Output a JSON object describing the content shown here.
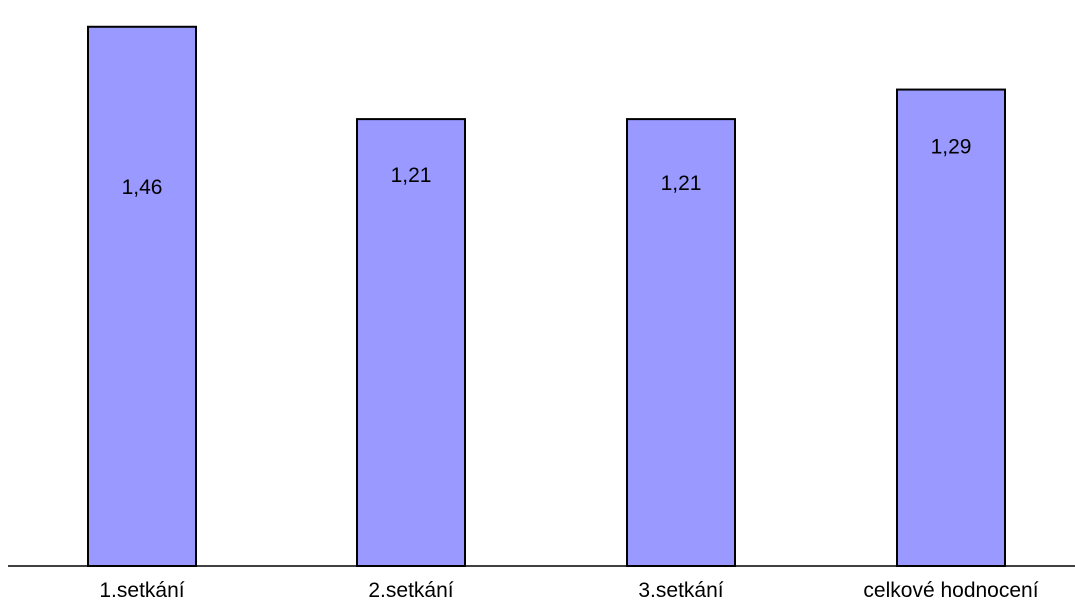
{
  "chart_data": {
    "type": "bar",
    "categories": [
      "1.setkání",
      "2.setkání",
      "3.setkání",
      "celkové hodnocení"
    ],
    "values": [
      1.46,
      1.21,
      1.21,
      1.29
    ],
    "value_labels": [
      "1,46",
      "1,21",
      "1,21",
      "1,29"
    ],
    "title": "",
    "xlabel": "",
    "ylabel": "",
    "ylim": [
      0,
      1.5
    ],
    "grid": false,
    "legend": "none",
    "colors": {
      "bar_fill": "#9999ff",
      "bar_stroke": "#000000",
      "axis": "#000000",
      "background": "#ffffff"
    }
  }
}
